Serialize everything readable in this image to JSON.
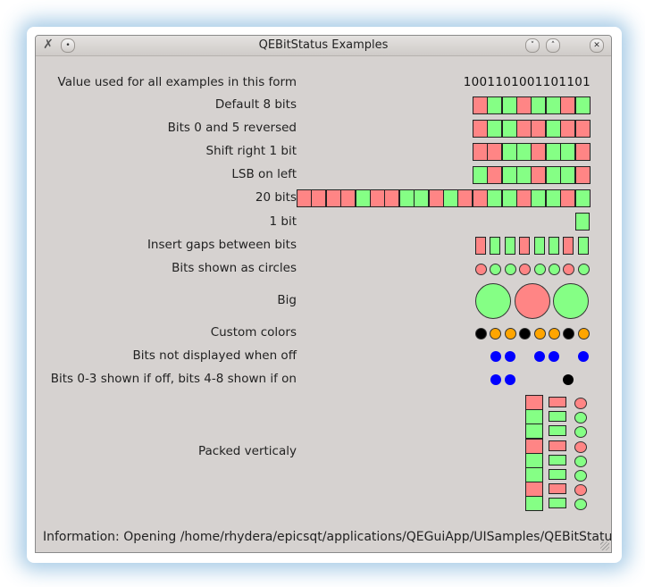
{
  "window": {
    "title": "QEBitStatus Examples",
    "status": "Information: Opening /home/rhydera/epicsqt/applications/QEGuiApp/UISamples/QEBitStatusEx"
  },
  "rows": {
    "value_label": "Value used for all examples in this form",
    "value_text": "1001101001101101",
    "default8": "Default 8 bits",
    "reversed": "Bits 0 and 5 reversed",
    "shift": "Shift right 1 bit",
    "lsb": "LSB on left",
    "bits20": "20 bits",
    "bit1": "1 bit",
    "gaps": "Insert gaps between bits",
    "circles": "Bits shown as circles",
    "big": "Big",
    "custom": "Custom colors",
    "not_displayed": "Bits not displayed when off",
    "mixed": "Bits 0-3 shown if off, bits 4-8 shown if on",
    "packed": "Packed verticaly"
  },
  "bits": {
    "default8": [
      0,
      1,
      1,
      0,
      1,
      1,
      0,
      1
    ],
    "reversed": [
      0,
      1,
      1,
      0,
      0,
      1,
      0,
      0
    ],
    "shift": [
      0,
      0,
      1,
      1,
      0,
      1,
      1,
      0
    ],
    "lsb": [
      1,
      0,
      1,
      1,
      0,
      1,
      1,
      0
    ],
    "bits20": [
      0,
      0,
      0,
      0,
      1,
      0,
      0,
      1,
      1,
      0,
      1,
      0,
      0,
      1,
      1,
      0,
      1,
      1,
      0,
      1
    ],
    "bit1": [
      1
    ],
    "gaps": [
      0,
      1,
      1,
      0,
      1,
      1,
      0,
      1
    ],
    "circles": [
      0,
      1,
      1,
      0,
      1,
      1,
      0,
      1
    ],
    "big": [
      1,
      0,
      1
    ],
    "custom": [
      "#000000",
      "#ffa500",
      "#ffa500",
      "#000000",
      "#ffa500",
      "#ffa500",
      "#000000",
      "#ffa500"
    ],
    "not_displayed": [
      1,
      1,
      0,
      1,
      1,
      0,
      1
    ],
    "mixed_dots": [
      1,
      1,
      0,
      0,
      0,
      0,
      1
    ]
  },
  "colors": {
    "on": "#85ff85",
    "off": "#ff8585",
    "blue": "#0000ff",
    "black": "#000000",
    "orange": "#ffa500"
  },
  "icons": {
    "app": "tools-icon",
    "menu": "window-menu-icon",
    "minimize": "chevron-down-icon",
    "maximize": "chevron-up-icon",
    "close": "close-icon"
  }
}
